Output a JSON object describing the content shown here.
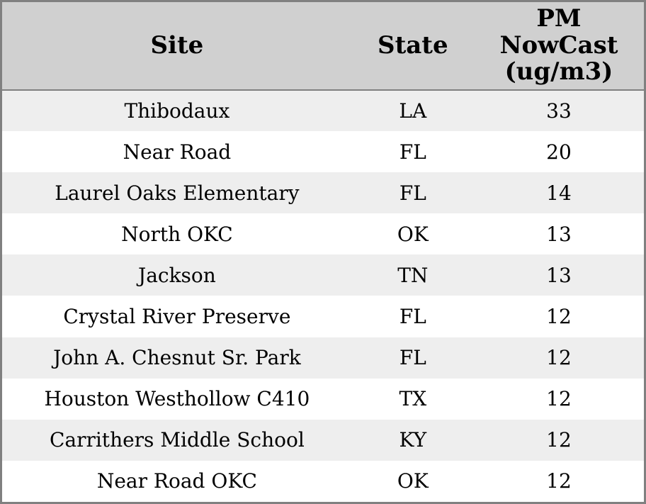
{
  "chart_data": {
    "type": "table",
    "columns": [
      "Site",
      "State",
      "PM NowCast (ug/m3)"
    ],
    "rows": [
      [
        "Thibodaux",
        "LA",
        33
      ],
      [
        "Near Road",
        "FL",
        20
      ],
      [
        "Laurel Oaks Elementary",
        "FL",
        14
      ],
      [
        "North OKC",
        "OK",
        13
      ],
      [
        "Jackson",
        "TN",
        13
      ],
      [
        "Crystal River Preserve",
        "FL",
        12
      ],
      [
        "John A. Chesnut Sr. Park",
        "FL",
        12
      ],
      [
        "Houston Westhollow C410",
        "TX",
        12
      ],
      [
        "Carrithers Middle School",
        "KY",
        12
      ],
      [
        "Near Road OKC",
        "OK",
        12
      ]
    ]
  },
  "table": {
    "headers": {
      "site": "Site",
      "state": "State",
      "pm_nowcast": "PM\nNowCast\n(ug/m3)"
    },
    "colors": {
      "header_bg": "#d0d0d0",
      "row_alt_bg": "#eeeeee",
      "row_bg": "#ffffff",
      "border": "#808080",
      "text": "#000000"
    }
  }
}
